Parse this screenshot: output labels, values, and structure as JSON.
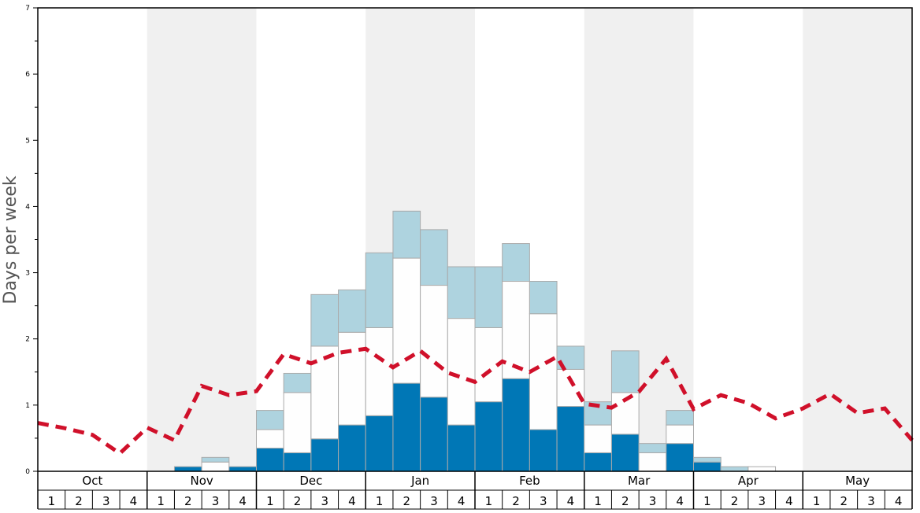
{
  "chart_data": {
    "type": "bar",
    "stacked": true,
    "ylabel": "Days per week",
    "ylim": [
      0,
      7
    ],
    "yticks": [
      0,
      1,
      2,
      3,
      4,
      5,
      6,
      7
    ],
    "months": [
      "Oct",
      "Nov",
      "Dec",
      "Jan",
      "Feb",
      "Mar",
      "Apr",
      "May"
    ],
    "week_labels": [
      "1",
      "2",
      "3",
      "4"
    ],
    "shaded_months": [
      "Nov",
      "Jan",
      "Mar",
      "May"
    ],
    "series": [
      {
        "name": "dark",
        "color": "#0077b6",
        "values": [
          0,
          0,
          0,
          0,
          0,
          0.07,
          0,
          0.07,
          0.35,
          0.28,
          0.49,
          0.7,
          0.84,
          1.33,
          1.12,
          0.7,
          1.05,
          1.4,
          0.63,
          0.98,
          0.28,
          0.56,
          0,
          0.42,
          0.14,
          0,
          0,
          0,
          0,
          0,
          0,
          0
        ]
      },
      {
        "name": "white",
        "color": "#fefefe",
        "values": [
          0,
          0,
          0,
          0,
          0,
          0,
          0.14,
          0,
          0.28,
          0.91,
          1.4,
          1.4,
          1.33,
          1.89,
          1.69,
          1.61,
          1.12,
          1.47,
          1.75,
          0.56,
          0.42,
          0.63,
          0.28,
          0.28,
          0,
          0,
          0.07,
          0,
          0,
          0,
          0,
          0
        ]
      },
      {
        "name": "light",
        "color": "#aed3df",
        "values": [
          0,
          0,
          0,
          0,
          0,
          0,
          0.07,
          0,
          0.29,
          0.29,
          0.78,
          0.64,
          1.13,
          0.71,
          0.84,
          0.78,
          0.92,
          0.57,
          0.49,
          0.35,
          0.35,
          0.63,
          0.14,
          0.22,
          0.07,
          0.07,
          0,
          0,
          0,
          0,
          0,
          0
        ]
      }
    ],
    "line": {
      "name": "average",
      "color": "#d0102a",
      "values": [
        0.73,
        0.65,
        0.55,
        0.27,
        0.66,
        0.47,
        1.29,
        1.15,
        1.21,
        1.77,
        1.63,
        1.79,
        1.85,
        1.57,
        1.82,
        1.49,
        1.35,
        1.66,
        1.5,
        1.73,
        1.02,
        0.96,
        1.2,
        1.7,
        0.94,
        1.15,
        1.03,
        0.8,
        0.95,
        1.17,
        0.88,
        0.95,
        0.47
      ]
    }
  }
}
